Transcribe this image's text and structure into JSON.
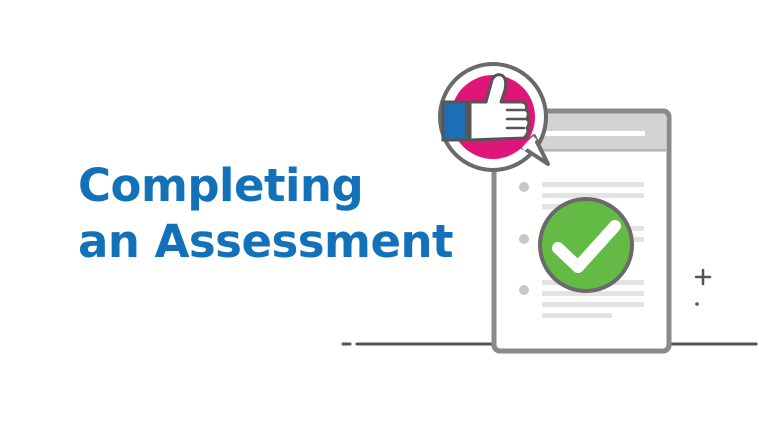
{
  "heading": {
    "line1": "Completing",
    "line2": "an Assessment"
  },
  "colors": {
    "heading": "#1271b9",
    "outline": "#8a8a8a",
    "accent_pink": "#e0157a",
    "accent_blue": "#1c6fb6",
    "check_green": "#63bb45",
    "line_gray": "#e1e1e1"
  },
  "icons": [
    "document-icon",
    "thumbs-up-badge-icon",
    "checkmark-badge-icon",
    "plus-sparkle-icon"
  ]
}
